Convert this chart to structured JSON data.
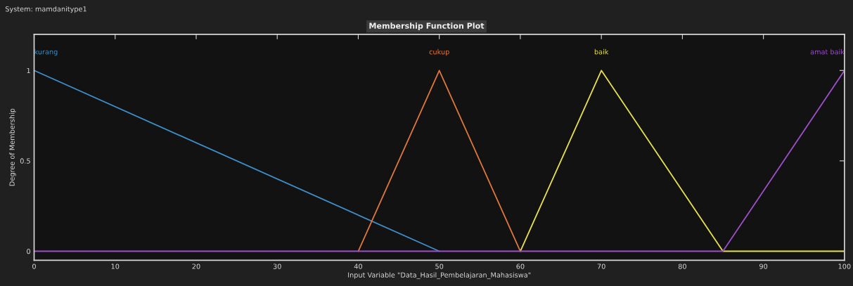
{
  "chart_data": {
    "type": "line",
    "title": "Membership Function Plot",
    "xlabel": "Input Variable \"Data_Hasil_Pembelajaran_Mahasiswa\"",
    "ylabel": "Degree of Membership",
    "annotations": [
      "System: mamdanitype1"
    ],
    "series": [
      {
        "name": "kurang",
        "color": "#3d8fc9",
        "x": [
          0,
          50
        ],
        "values": [
          1,
          0
        ]
      },
      {
        "name": "cukup",
        "color": "#e0773a",
        "x": [
          40,
          50,
          60
        ],
        "values": [
          0,
          1,
          0
        ]
      },
      {
        "name": "baik",
        "color": "#e8e04a",
        "x": [
          60,
          70,
          85,
          100
        ],
        "values": [
          0,
          1,
          0,
          0
        ]
      },
      {
        "name": "amat baik",
        "color": "#9b4fc8",
        "x": [
          0,
          85,
          100
        ],
        "values": [
          0,
          0,
          1
        ]
      }
    ],
    "xlim": [
      0,
      100
    ],
    "ylim": [
      -0.05,
      1.2
    ],
    "xticks": [
      0,
      10,
      20,
      30,
      40,
      50,
      60,
      70,
      80,
      90,
      100
    ],
    "yticks": [
      0,
      0.5,
      1
    ],
    "grid": false,
    "legend": false,
    "marker": "none",
    "line_style": "solid"
  }
}
